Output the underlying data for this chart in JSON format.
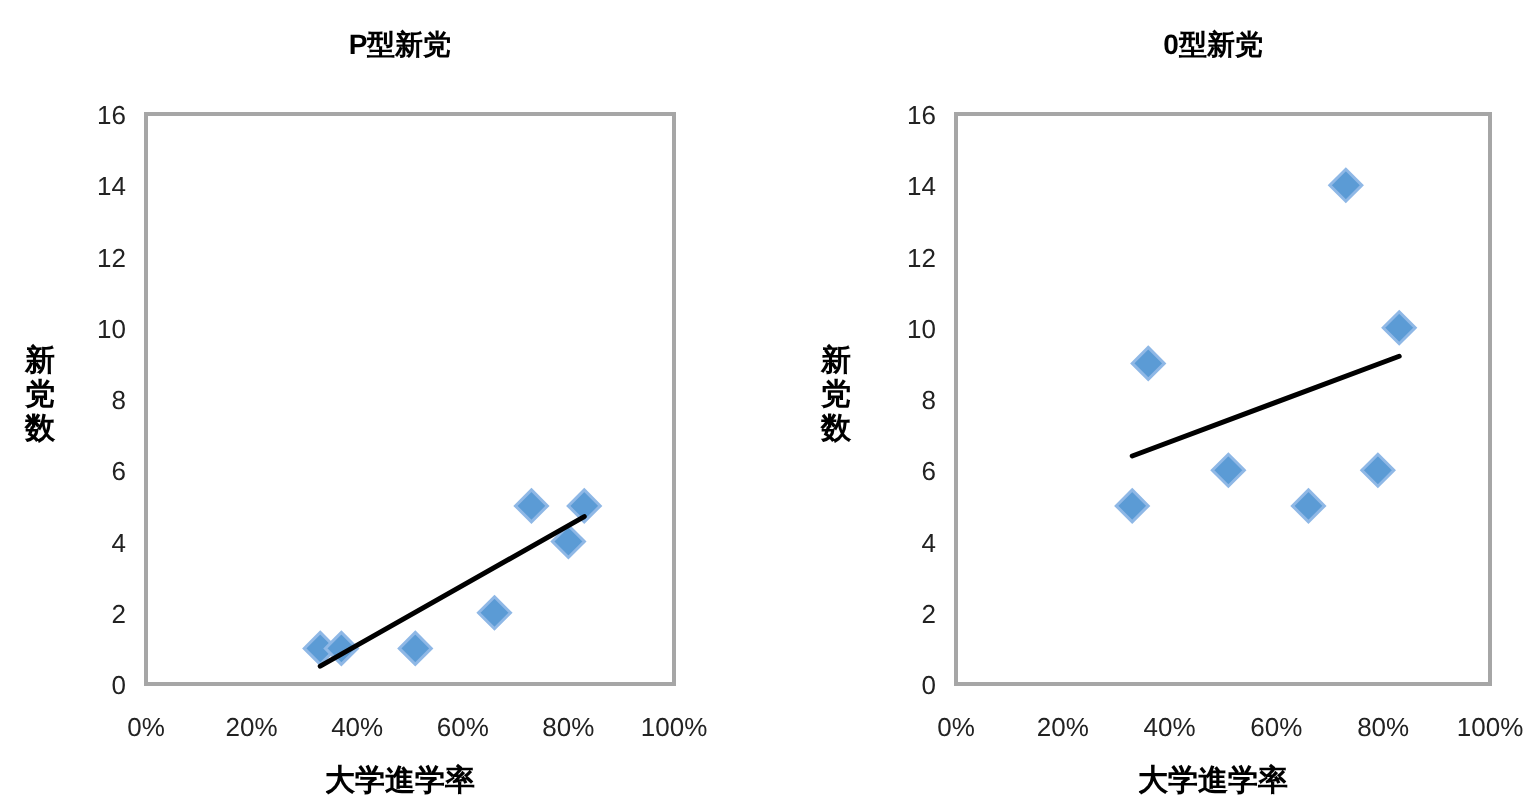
{
  "chart_data": [
    {
      "type": "scatter",
      "title": "P型新党",
      "xlabel": "大学進学率",
      "ylabel": "新党数",
      "xlim": [
        0,
        100
      ],
      "xticks": [
        {
          "value": 0,
          "label": "0%"
        },
        {
          "value": 20,
          "label": "20%"
        },
        {
          "value": 40,
          "label": "40%"
        },
        {
          "value": 60,
          "label": "60%"
        },
        {
          "value": 80,
          "label": "80%"
        },
        {
          "value": 100,
          "label": "100%"
        }
      ],
      "ylim": [
        0,
        16
      ],
      "yticks": [
        0,
        2,
        4,
        6,
        8,
        10,
        12,
        14,
        16
      ],
      "series": [
        {
          "marker": "diamond",
          "color": "#5b9bd5",
          "x": [
            33,
            37,
            51,
            66,
            73,
            80,
            83
          ],
          "values": [
            1,
            1,
            1,
            2,
            5,
            4,
            5
          ]
        },
        {
          "type": "line",
          "color": "#000000",
          "x": [
            33,
            83
          ],
          "values": [
            0.5,
            4.7
          ]
        }
      ]
    },
    {
      "type": "scatter",
      "title": "0型新党",
      "xlabel": "大学進学率",
      "ylabel": "新党数",
      "xlim": [
        0,
        100
      ],
      "xticks": [
        {
          "value": 0,
          "label": "0%"
        },
        {
          "value": 20,
          "label": "20%"
        },
        {
          "value": 40,
          "label": "40%"
        },
        {
          "value": 60,
          "label": "60%"
        },
        {
          "value": 80,
          "label": "80%"
        },
        {
          "value": 100,
          "label": "100%"
        }
      ],
      "ylim": [
        0,
        16
      ],
      "yticks": [
        0,
        2,
        4,
        6,
        8,
        10,
        12,
        14,
        16
      ],
      "series": [
        {
          "marker": "diamond",
          "color": "#5b9bd5",
          "x": [
            33,
            36,
            51,
            66,
            73,
            79,
            83
          ],
          "values": [
            5,
            9,
            6,
            5,
            14,
            6,
            10
          ]
        },
        {
          "type": "line",
          "color": "#000000",
          "x": [
            33,
            83
          ],
          "values": [
            6.4,
            9.2
          ]
        }
      ]
    }
  ]
}
